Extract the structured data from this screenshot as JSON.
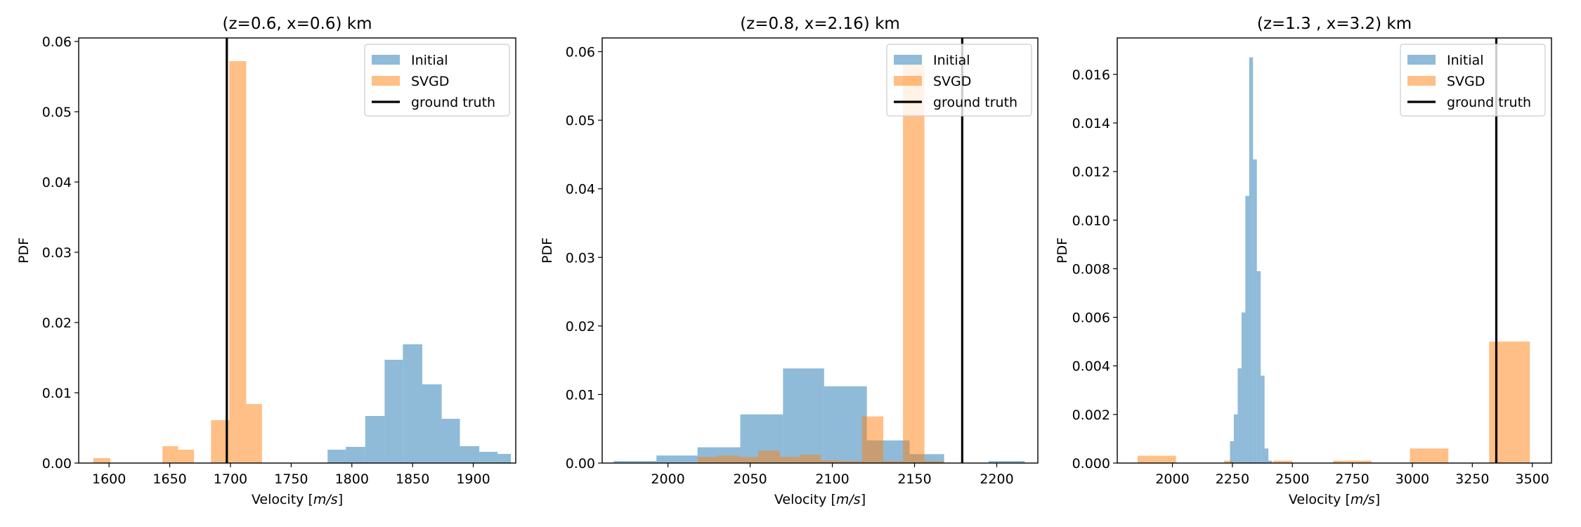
{
  "colors": {
    "initial": "#1f77b4",
    "svgd": "#ff7f0e",
    "truth": "#000000"
  },
  "legend": {
    "labels": [
      "Initial",
      "SVGD",
      "ground truth"
    ],
    "position": "upper-right"
  },
  "chart_data": [
    {
      "type": "bar",
      "title": "(z=0.6, x=0.6) km",
      "xlabel": "Velocity [m/s]",
      "ylabel": "PDF",
      "xlim": [
        1575,
        1935
      ],
      "ylim": [
        0,
        0.0605
      ],
      "xticks": [
        "1600",
        "1650",
        "1700",
        "1750",
        "1800",
        "1850",
        "1900"
      ],
      "yticks": [
        "0.00",
        "0.01",
        "0.02",
        "0.03",
        "0.04",
        "0.05",
        "0.06"
      ],
      "ground_truth": 1697,
      "series": [
        {
          "name": "Initial",
          "bins": [
            [
              1780,
              1795,
              0.0019
            ],
            [
              1795,
              1811,
              0.0023
            ],
            [
              1811,
              1827,
              0.0067
            ],
            [
              1827,
              1842,
              0.0147
            ],
            [
              1842,
              1858,
              0.0169
            ],
            [
              1858,
              1874,
              0.0112
            ],
            [
              1874,
              1889,
              0.0063
            ],
            [
              1889,
              1905,
              0.0024
            ],
            [
              1905,
              1920,
              0.0016
            ],
            [
              1920,
              1931,
              0.0013
            ]
          ]
        },
        {
          "name": "SVGD",
          "bins": [
            [
              1587,
              1601,
              0.0007
            ],
            [
              1644,
              1657,
              0.0024
            ],
            [
              1657,
              1670,
              0.0019
            ],
            [
              1684,
              1699,
              0.0061
            ],
            [
              1699,
              1713,
              0.0572
            ],
            [
              1713,
              1726,
              0.0084
            ]
          ]
        }
      ]
    },
    {
      "type": "bar",
      "title": "(z=0.8, x=2.16) km",
      "xlabel": "Velocity [m/s]",
      "ylabel": "PDF",
      "xlim": [
        1960,
        2225
      ],
      "ylim": [
        0,
        0.062
      ],
      "xticks": [
        "2000",
        "2050",
        "2100",
        "2150",
        "2200"
      ],
      "yticks": [
        "0.00",
        "0.01",
        "0.02",
        "0.03",
        "0.04",
        "0.05",
        "0.06"
      ],
      "ground_truth": 2179,
      "series": [
        {
          "name": "Initial",
          "bins": [
            [
              1967,
              1993,
              0.0003
            ],
            [
              1993,
              2018,
              0.0011
            ],
            [
              2018,
              2044,
              0.0023
            ],
            [
              2044,
              2070,
              0.0071
            ],
            [
              2070,
              2095,
              0.0138
            ],
            [
              2095,
              2121,
              0.0112
            ],
            [
              2121,
              2147,
              0.0033
            ],
            [
              2147,
              2168,
              0.0013
            ],
            [
              2195,
              2217,
              0.0003
            ]
          ]
        },
        {
          "name": "SVGD",
          "bins": [
            [
              2018,
              2030,
              0.0009
            ],
            [
              2030,
              2043,
              0.0011
            ],
            [
              2043,
              2055,
              0.0009
            ],
            [
              2055,
              2068,
              0.0018
            ],
            [
              2068,
              2080,
              0.0009
            ],
            [
              2080,
              2093,
              0.0012
            ],
            [
              2093,
              2105,
              0.0004
            ],
            [
              2105,
              2118,
              0.0003
            ],
            [
              2118,
              2131,
              0.0068
            ],
            [
              2131,
              2143,
              0.0003
            ],
            [
              2143,
              2156,
              0.0581
            ],
            [
              2156,
              2168,
              0.0003
            ]
          ]
        }
      ]
    },
    {
      "type": "bar",
      "title": "(z=1.3 , x=3.2) km",
      "xlabel": "Velocity [m/s]",
      "ylabel": "PDF",
      "xlim": [
        1770,
        3580
      ],
      "ylim": [
        0,
        0.0175
      ],
      "xticks": [
        "2000",
        "2250",
        "2500",
        "2750",
        "3000",
        "3250",
        "3500"
      ],
      "yticks": [
        "0.000",
        "0.002",
        "0.004",
        "0.006",
        "0.008",
        "0.010",
        "0.012",
        "0.014",
        "0.016"
      ],
      "ground_truth": 3350,
      "series": [
        {
          "name": "Initial",
          "bins": [
            [
              2240,
              2256,
              0.0009
            ],
            [
              2256,
              2272,
              0.002
            ],
            [
              2272,
              2288,
              0.0039
            ],
            [
              2288,
              2304,
              0.0062
            ],
            [
              2304,
              2320,
              0.011
            ],
            [
              2320,
              2336,
              0.0167
            ],
            [
              2336,
              2352,
              0.0125
            ],
            [
              2352,
              2368,
              0.0079
            ],
            [
              2368,
              2384,
              0.0036
            ],
            [
              2384,
              2400,
              0.0006
            ],
            [
              2400,
              2416,
              0.0001
            ]
          ]
        },
        {
          "name": "SVGD",
          "bins": [
            [
              1855,
              2015,
              0.0003
            ],
            [
              2215,
              2250,
              0.0001
            ],
            [
              2420,
              2500,
              0.0001
            ],
            [
              2670,
              2830,
              0.0001
            ],
            [
              2990,
              3150,
              0.0006
            ],
            [
              3320,
              3490,
              0.005
            ]
          ]
        }
      ]
    }
  ]
}
